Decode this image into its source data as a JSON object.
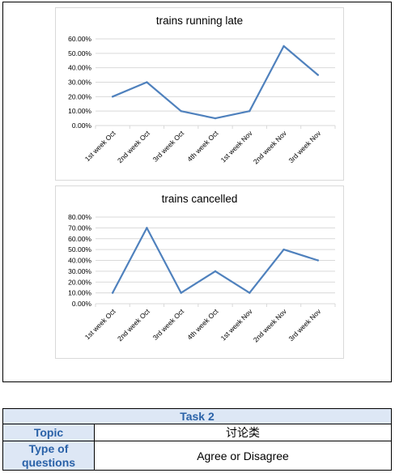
{
  "chart_data": [
    {
      "type": "line",
      "title": "trains running late",
      "categories": [
        "1st week Oct",
        "2nd week Oct",
        "3rd week Oct",
        "4th week Oct",
        "1st week Nov",
        "2nd week Nov",
        "3rd week Nov"
      ],
      "series": [
        {
          "values": [
            20,
            30,
            10,
            5,
            10,
            55,
            35
          ],
          "color": "#4f81bd"
        }
      ],
      "ylim": [
        0,
        60
      ],
      "yticks": [
        "0.00%",
        "10.00%",
        "20.00%",
        "30.00%",
        "40.00%",
        "50.00%",
        "60.00%"
      ],
      "grid": true,
      "legend": "none"
    },
    {
      "type": "line",
      "title": "trains cancelled",
      "categories": [
        "1st week Oct",
        "2nd week Oct",
        "3rd week Oct",
        "4th week Oct",
        "1st week Nov",
        "2nd week Nov",
        "3rd week Nov"
      ],
      "series": [
        {
          "values": [
            10,
            70,
            10,
            30,
            10,
            50,
            40
          ],
          "color": "#4f81bd"
        }
      ],
      "ylim": [
        0,
        80
      ],
      "yticks": [
        "0.00%",
        "10.00%",
        "20.00%",
        "30.00%",
        "40.00%",
        "50.00%",
        "60.00%",
        "70.00%",
        "80.00%"
      ],
      "grid": true,
      "legend": "none"
    }
  ],
  "task": {
    "title": "Task 2",
    "rows": [
      {
        "key": "Topic",
        "value": "讨论类"
      },
      {
        "key": "Type of questions",
        "value": "Agree or Disagree"
      }
    ]
  },
  "colors": {
    "header_bg": "#dde7f5",
    "header_text": "#2a62a8",
    "grid": "#d9d9d9",
    "line": "#4f81bd"
  }
}
